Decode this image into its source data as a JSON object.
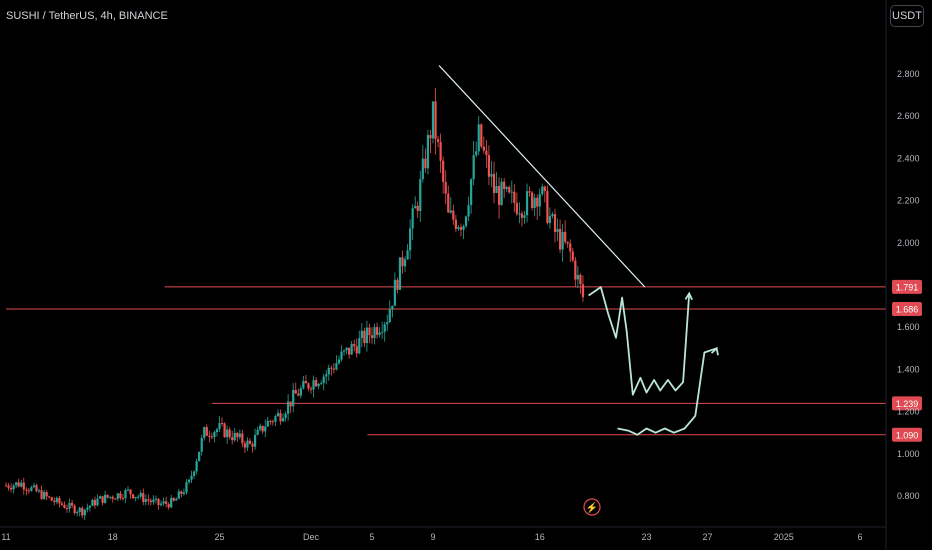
{
  "header": {
    "title": "SUSHI / TetherUS, 4h, BINANCE",
    "currency": "USDT"
  },
  "chart_data": {
    "type": "candlestick",
    "symbol": "SUSHI / TetherUS",
    "interval": "4h",
    "exchange": "BINANCE",
    "y_ticks": [
      0.8,
      1.0,
      1.2,
      1.4,
      1.6,
      2.0,
      2.2,
      2.4,
      2.6,
      2.8
    ],
    "y_tick_labels": [
      "0.800",
      "1.000",
      "1.200",
      "1.400",
      "1.600",
      "2.000",
      "2.200",
      "2.400",
      "2.600",
      "2.800"
    ],
    "ylim": [
      0.72,
      2.93
    ],
    "x_ticks": [
      "11",
      "18",
      "25",
      "Dec",
      "5",
      "9",
      "16",
      "23",
      "27",
      "2025",
      "6"
    ],
    "x_tick_day": [
      0,
      7,
      14,
      20,
      24,
      28,
      35,
      42,
      46,
      51,
      56
    ],
    "xlim_days": [
      0,
      62
    ],
    "price_levels": [
      {
        "value": 1.791,
        "label": "1.791",
        "from_day": 10.4
      },
      {
        "value": 1.686,
        "label": "1.686",
        "from_day": 0
      },
      {
        "value": 1.239,
        "label": "1.239",
        "from_day": 13.5
      },
      {
        "value": 1.09,
        "label": "1.090",
        "from_day": 23.7
      }
    ],
    "trendline": {
      "from": [
        28.4,
        2.84
      ],
      "to": [
        41.9,
        1.79
      ]
    },
    "candles_daily_close": [
      [
        0,
        0.85
      ],
      [
        1,
        0.86
      ],
      [
        2,
        0.82
      ],
      [
        3,
        0.78
      ],
      [
        4,
        0.75
      ],
      [
        5,
        0.73
      ],
      [
        6,
        0.78
      ],
      [
        7,
        0.8
      ],
      [
        8,
        0.82
      ],
      [
        9,
        0.79
      ],
      [
        10,
        0.76
      ],
      [
        11,
        0.77
      ],
      [
        12,
        0.86
      ],
      [
        13,
        1.1
      ],
      [
        14,
        1.12
      ],
      [
        15,
        1.08
      ],
      [
        16,
        1.04
      ],
      [
        17,
        1.14
      ],
      [
        18,
        1.19
      ],
      [
        19,
        1.28
      ],
      [
        20,
        1.34
      ],
      [
        21,
        1.38
      ],
      [
        22,
        1.46
      ],
      [
        23,
        1.52
      ],
      [
        24,
        1.58
      ],
      [
        25,
        1.65
      ],
      [
        26,
        1.92
      ],
      [
        27,
        2.2
      ],
      [
        28,
        2.6
      ],
      [
        29,
        2.12
      ],
      [
        30,
        2.1
      ],
      [
        31,
        2.5
      ],
      [
        32,
        2.25
      ],
      [
        33,
        2.2
      ],
      [
        34,
        2.18
      ],
      [
        35,
        2.25
      ],
      [
        36,
        2.05
      ],
      [
        37,
        1.95
      ],
      [
        38,
        1.7
      ]
    ],
    "projection_path": [
      [
        38.2,
        1.75
      ],
      [
        39.0,
        1.79
      ],
      [
        39.5,
        1.66
      ],
      [
        40.0,
        1.55
      ],
      [
        40.4,
        1.74
      ],
      [
        40.7,
        1.58
      ],
      [
        41.1,
        1.28
      ],
      [
        41.6,
        1.36
      ],
      [
        42.0,
        1.29
      ],
      [
        42.5,
        1.35
      ],
      [
        42.9,
        1.3
      ],
      [
        43.4,
        1.35
      ],
      [
        43.9,
        1.3
      ],
      [
        44.4,
        1.34
      ],
      [
        44.8,
        1.76
      ]
    ],
    "projection_path_2": [
      [
        40.1,
        1.12
      ],
      [
        40.8,
        1.11
      ],
      [
        41.4,
        1.09
      ],
      [
        42.0,
        1.12
      ],
      [
        42.6,
        1.1
      ],
      [
        43.2,
        1.12
      ],
      [
        43.8,
        1.1
      ],
      [
        44.5,
        1.12
      ],
      [
        45.2,
        1.18
      ],
      [
        45.8,
        1.48
      ],
      [
        46.6,
        1.5
      ]
    ],
    "grid": false,
    "legend": "none"
  },
  "colors": {
    "up": "#26a69a",
    "down": "#ef5350",
    "level": "#e04a52",
    "trend": "#e0f2ee",
    "projection": "#b9e6d9",
    "background": "#000000",
    "axis_text": "#b2b5be"
  }
}
